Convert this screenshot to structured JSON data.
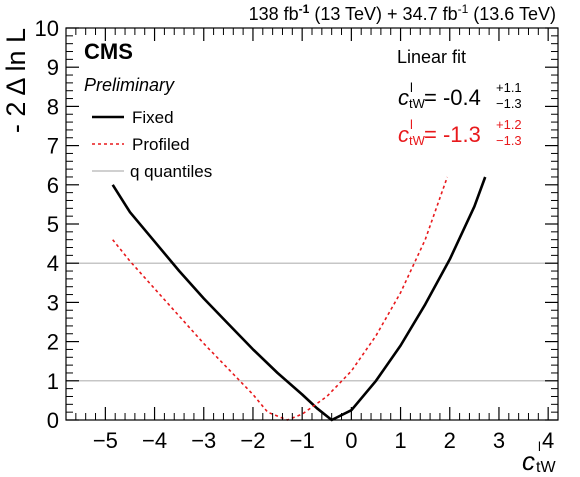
{
  "header": {
    "lumi_part1": "138 fb",
    "lumi_exp1": "-1",
    "lumi_energy1": " (13 TeV) + 34.7 fb",
    "lumi_exp2": "-1",
    "lumi_energy2": " (13.6 TeV)"
  },
  "labels": {
    "cms": "CMS",
    "preliminary": "Preliminary",
    "fit_title": "Linear fit"
  },
  "results": {
    "fixed": {
      "symbol": "c",
      "superscript": "l",
      "subscript": "tW",
      "value_text": " = -0.4",
      "up": "+1.1",
      "down": "−1.3",
      "color": "#000000"
    },
    "profiled": {
      "symbol": "c",
      "superscript": "l",
      "subscript": "tW",
      "value_text": " = -1.3",
      "up": "+1.2",
      "down": "−1.3",
      "color": "#e8191c"
    }
  },
  "colors": {
    "fixed": "#000000",
    "profiled": "#e8191c",
    "quantile": "#b4b4b4"
  },
  "chart_data": {
    "type": "line",
    "xlabel": {
      "symbol": "c",
      "superscript": "l",
      "subscript": "tW"
    },
    "ylabel": "- 2 Δ ln L",
    "xlim": [
      -5.8,
      4.2
    ],
    "ylim": [
      0,
      10
    ],
    "xticks": [
      -5,
      -4,
      -3,
      -2,
      -1,
      0,
      1,
      2,
      3,
      4
    ],
    "xtick_labels": [
      "−5",
      "−4",
      "−3",
      "−2",
      "−1",
      "0",
      "1",
      "2",
      "3",
      "4"
    ],
    "yticks": [
      0,
      1,
      2,
      3,
      4,
      5,
      6,
      7,
      8,
      9,
      10
    ],
    "ytick_labels": [
      "0",
      "1",
      "2",
      "3",
      "4",
      "5",
      "6",
      "7",
      "8",
      "9",
      "10"
    ],
    "quantile_lines": [
      1,
      4
    ],
    "legend": {
      "placement": "top-left",
      "entries": [
        "Fixed",
        "Profiled",
        "q quantiles"
      ]
    },
    "series": [
      {
        "name": "Fixed",
        "style": "solid",
        "points": [
          [
            -4.85,
            6.0
          ],
          [
            -4.5,
            5.3
          ],
          [
            -4.0,
            4.55
          ],
          [
            -3.5,
            3.8
          ],
          [
            -3.0,
            3.1
          ],
          [
            -2.5,
            2.45
          ],
          [
            -2.0,
            1.8
          ],
          [
            -1.5,
            1.2
          ],
          [
            -1.0,
            0.65
          ],
          [
            -0.7,
            0.3
          ],
          [
            -0.4,
            0.0
          ],
          [
            0.0,
            0.25
          ],
          [
            0.5,
            1.0
          ],
          [
            1.0,
            1.9
          ],
          [
            1.5,
            2.95
          ],
          [
            2.0,
            4.1
          ],
          [
            2.5,
            5.45
          ],
          [
            2.72,
            6.2
          ]
        ]
      },
      {
        "name": "Profiled",
        "style": "dashed",
        "points": [
          [
            -4.85,
            4.6
          ],
          [
            -4.5,
            4.05
          ],
          [
            -4.0,
            3.35
          ],
          [
            -3.5,
            2.65
          ],
          [
            -3.0,
            1.95
          ],
          [
            -2.5,
            1.3
          ],
          [
            -2.0,
            0.65
          ],
          [
            -1.7,
            0.2
          ],
          [
            -1.3,
            0.0
          ],
          [
            -1.0,
            0.15
          ],
          [
            -0.5,
            0.6
          ],
          [
            0.0,
            1.25
          ],
          [
            0.5,
            2.15
          ],
          [
            1.0,
            3.25
          ],
          [
            1.5,
            4.6
          ],
          [
            1.95,
            6.2
          ]
        ]
      }
    ]
  }
}
